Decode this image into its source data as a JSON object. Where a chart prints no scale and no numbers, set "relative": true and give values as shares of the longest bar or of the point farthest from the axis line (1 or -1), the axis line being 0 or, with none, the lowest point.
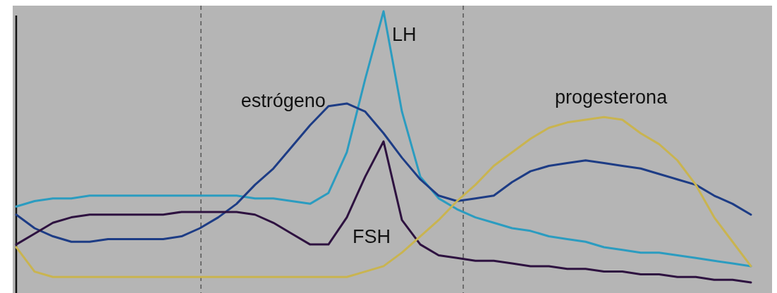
{
  "chart_data": {
    "type": "line",
    "relative": true,
    "line_style": "solid",
    "categories": [
      null,
      null,
      null,
      null,
      null,
      null,
      null,
      null,
      null,
      null,
      null,
      null,
      null,
      null,
      null,
      null,
      null,
      null,
      null,
      null,
      null,
      null,
      null,
      null,
      null,
      null,
      null,
      null,
      null,
      null,
      null,
      null,
      null,
      null,
      null,
      null,
      null,
      null,
      null,
      null,
      null
    ],
    "series": [
      {
        "name": "LH",
        "color": "#2b9cc0",
        "values": [
          0.28,
          0.3,
          0.31,
          0.31,
          0.32,
          0.32,
          0.32,
          0.32,
          0.32,
          0.32,
          0.32,
          0.32,
          0.32,
          0.31,
          0.31,
          0.3,
          0.29,
          0.33,
          0.48,
          0.75,
          1,
          0.63,
          0.39,
          0.31,
          0.27,
          0.24,
          0.22,
          0.2,
          0.19,
          0.17,
          0.16,
          0.15,
          0.13,
          0.12,
          0.11,
          0.11,
          0.1,
          0.09,
          0.08,
          0.07,
          0.06
        ]
      },
      {
        "name": "estrógeno",
        "color": "#1d3c85",
        "values": [
          0.25,
          0.2,
          0.17,
          0.15,
          0.15,
          0.16,
          0.16,
          0.16,
          0.16,
          0.17,
          0.2,
          0.24,
          0.29,
          0.36,
          0.42,
          0.5,
          0.58,
          0.65,
          0.66,
          0.63,
          0.55,
          0.46,
          0.38,
          0.32,
          0.3,
          0.31,
          0.32,
          0.37,
          0.41,
          0.43,
          0.44,
          0.45,
          0.44,
          0.43,
          0.42,
          0.4,
          0.38,
          0.36,
          0.32,
          0.29,
          0.25
        ]
      },
      {
        "name": "FSH",
        "color": "#2e1240",
        "values": [
          0.14,
          0.18,
          0.22,
          0.24,
          0.25,
          0.25,
          0.25,
          0.25,
          0.25,
          0.26,
          0.26,
          0.26,
          0.26,
          0.25,
          0.22,
          0.18,
          0.14,
          0.14,
          0.24,
          0.39,
          0.52,
          0.23,
          0.14,
          0.1,
          0.09,
          0.08,
          0.08,
          0.07,
          0.06,
          0.06,
          0.05,
          0.05,
          0.04,
          0.04,
          0.03,
          0.03,
          0.02,
          0.02,
          0.01,
          0.01,
          0
        ]
      },
      {
        "name": "progesterona",
        "color": "#c9b450",
        "values": [
          0.13,
          0.04,
          0.02,
          0.02,
          0.02,
          0.02,
          0.02,
          0.02,
          0.02,
          0.02,
          0.02,
          0.02,
          0.02,
          0.02,
          0.02,
          0.02,
          0.02,
          0.02,
          0.02,
          0.04,
          0.06,
          0.11,
          0.17,
          0.23,
          0.3,
          0.36,
          0.43,
          0.48,
          0.53,
          0.57,
          0.59,
          0.6,
          0.61,
          0.6,
          0.55,
          0.51,
          0.45,
          0.36,
          0.24,
          0.15,
          0.06
        ]
      }
    ]
  }
}
